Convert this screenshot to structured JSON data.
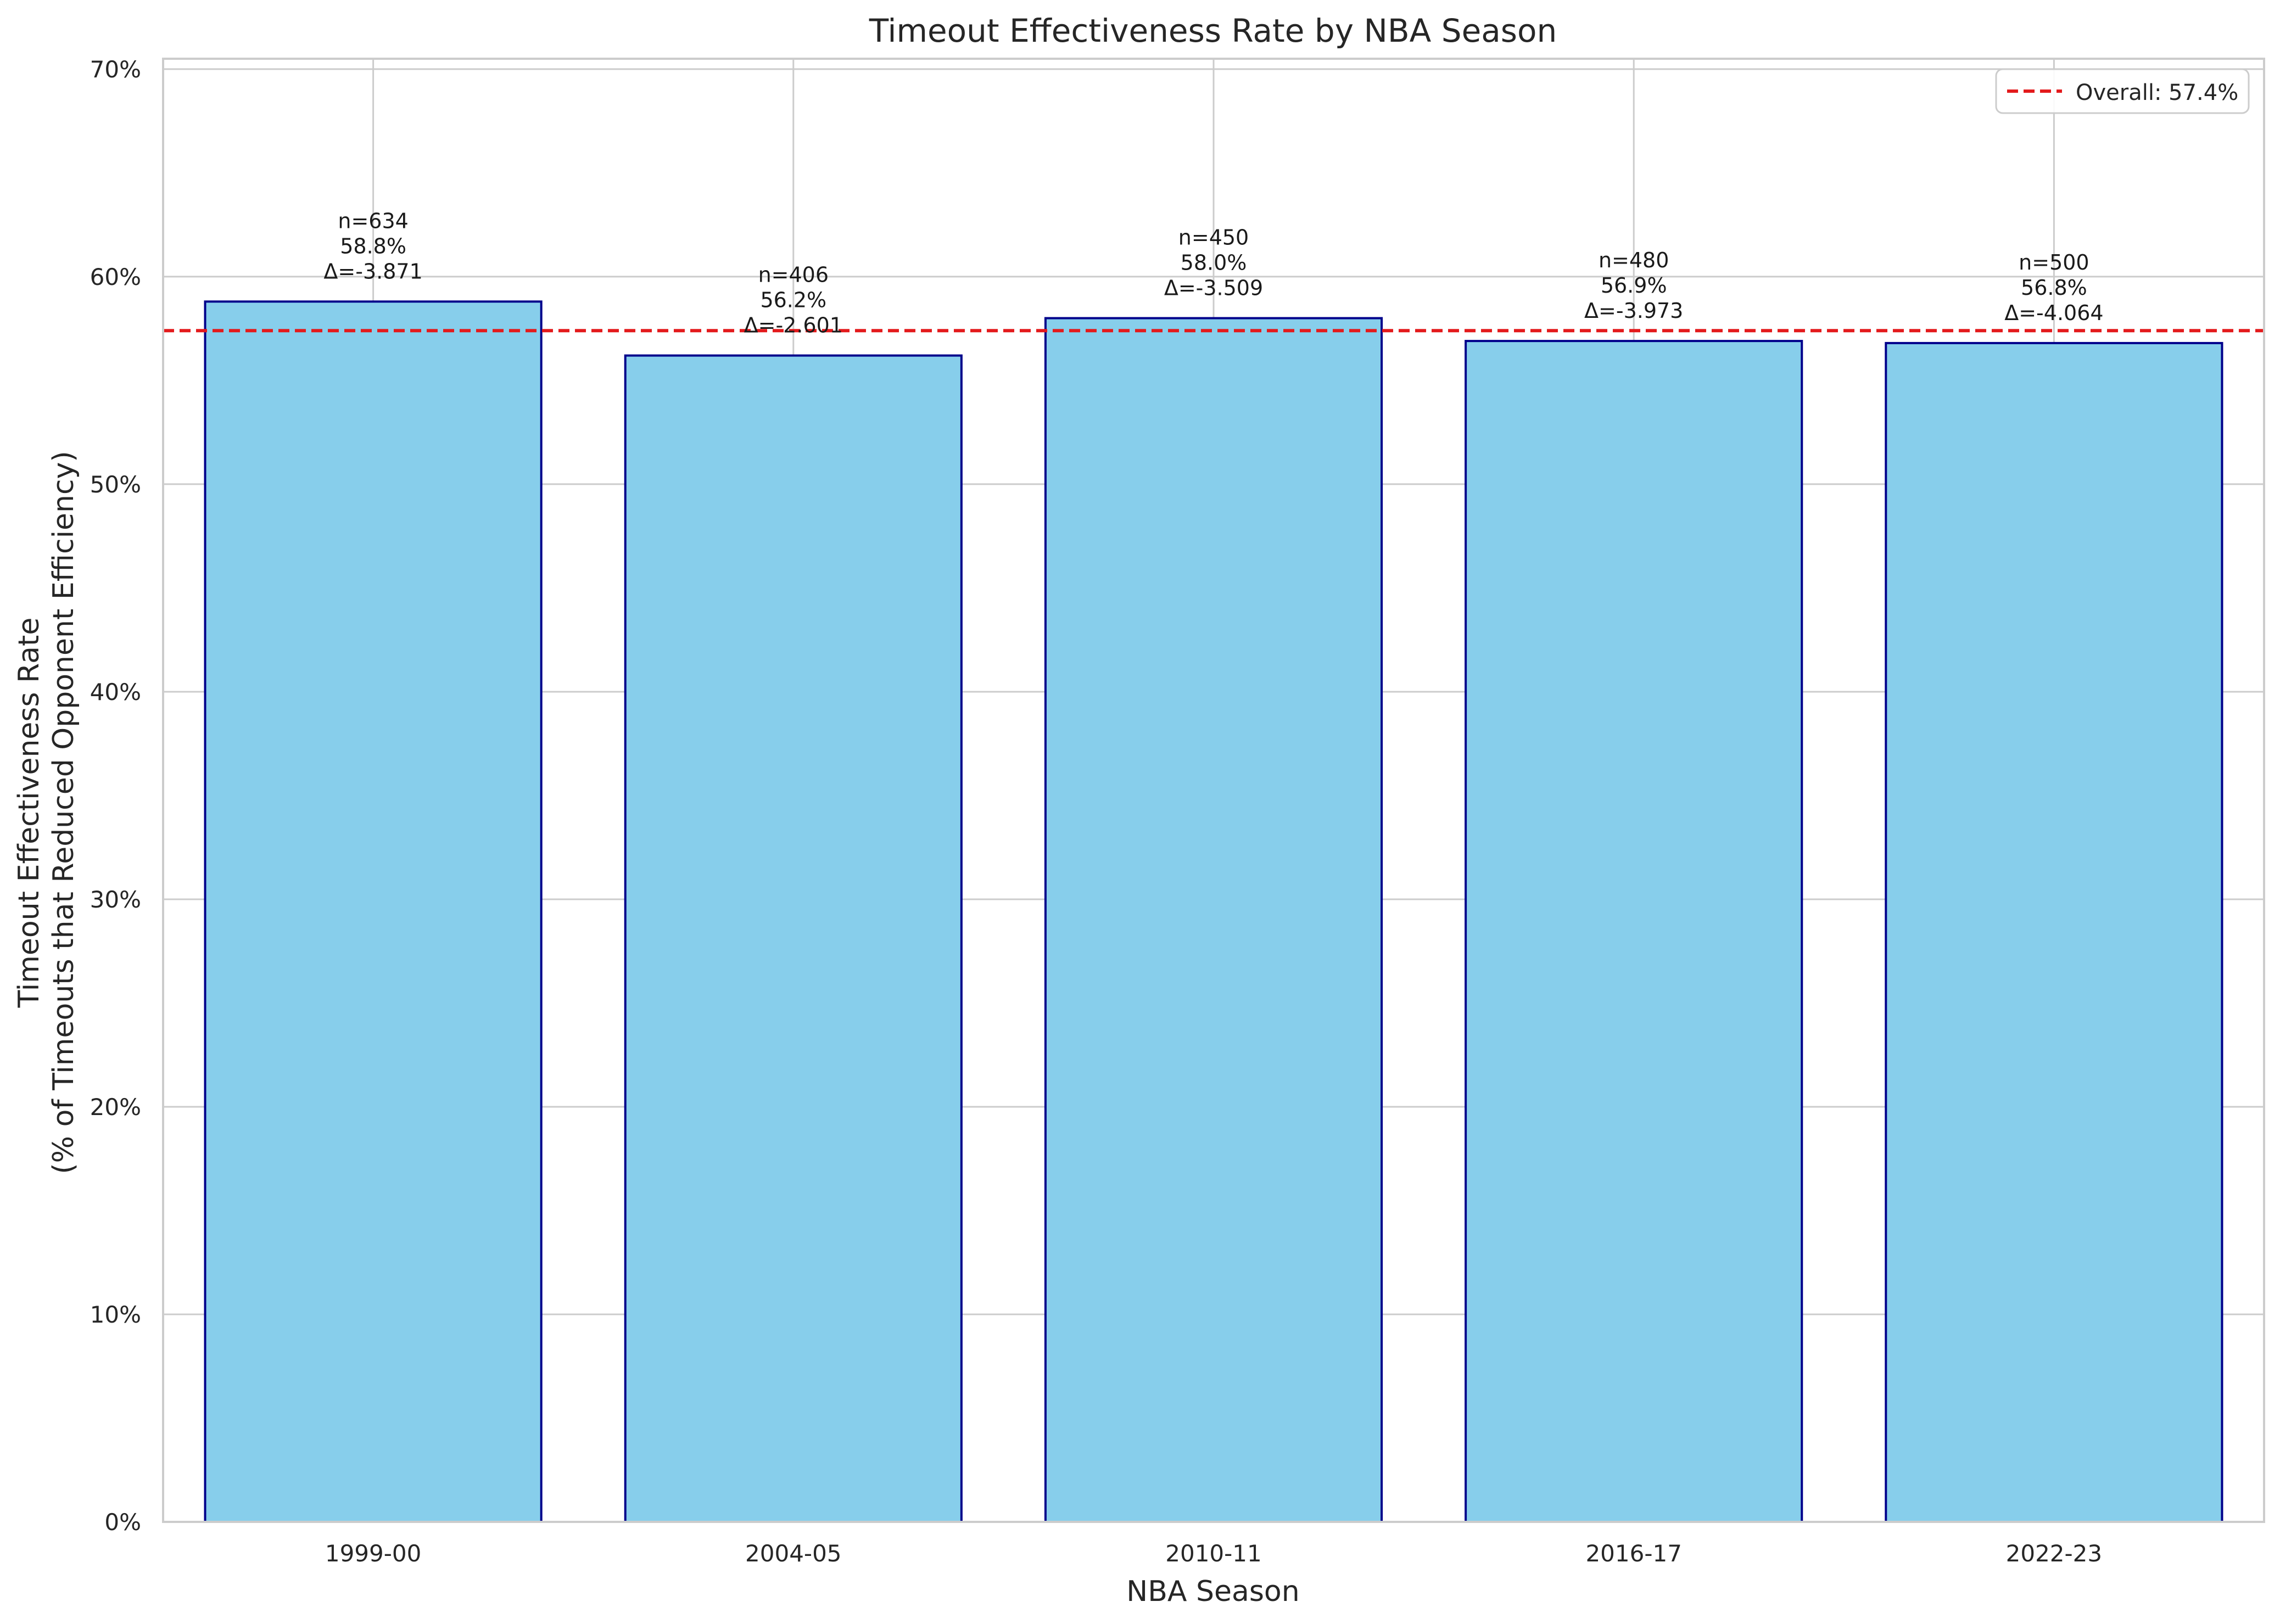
{
  "chart_data": {
    "type": "bar",
    "title": "Timeout Effectiveness Rate by NBA Season",
    "xlabel": "NBA Season",
    "ylabel": [
      "Timeout Effectiveness Rate",
      "(% of Timeouts that Reduced Opponent Efficiency)"
    ],
    "categories": [
      "1999-00",
      "2004-05",
      "2010-11",
      "2016-17",
      "2022-23"
    ],
    "values": [
      58.8,
      56.2,
      58.0,
      56.9,
      56.8
    ],
    "sample_sizes": [
      634,
      406,
      450,
      480,
      500
    ],
    "deltas": [
      -3.871,
      -2.601,
      -3.509,
      -3.973,
      -4.064
    ],
    "bar_labels": [
      [
        "n=634",
        "58.8%",
        "Δ=-3.871"
      ],
      [
        "n=406",
        "56.2%",
        "Δ=-2.601"
      ],
      [
        "n=450",
        "58.0%",
        "Δ=-3.509"
      ],
      [
        "n=480",
        "56.9%",
        "Δ=-3.973"
      ],
      [
        "n=500",
        "56.8%",
        "Δ=-4.064"
      ]
    ],
    "ylim": [
      0,
      70.5
    ],
    "yticks": [
      0,
      10,
      20,
      30,
      40,
      50,
      60,
      70
    ],
    "ytick_labels": [
      "0%",
      "10%",
      "20%",
      "30%",
      "40%",
      "50%",
      "60%",
      "70%"
    ],
    "reference_line": {
      "value": 57.4,
      "label": "Overall: 57.4%",
      "style": "dashed",
      "color": "#e31a1c"
    },
    "legend": {
      "placement": "top-right",
      "entries": [
        "Overall: 57.4%"
      ]
    },
    "grid": true,
    "colors": {
      "bar_fill": "#87ceeb",
      "bar_edge": "#00008b",
      "grid": "#cccccc",
      "axis": "#cccccc",
      "text": "#262626",
      "reference_line": "#e31a1c"
    }
  }
}
